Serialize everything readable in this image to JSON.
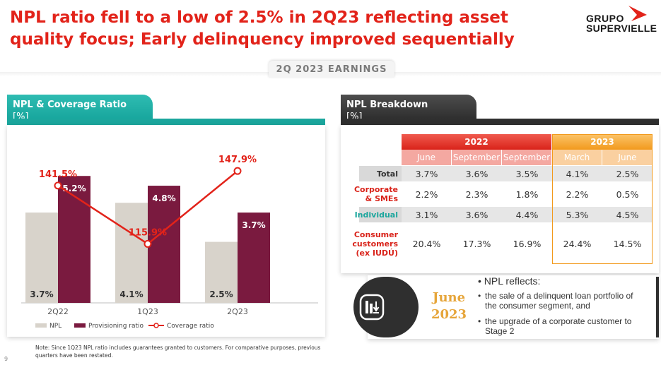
{
  "header": {
    "title": "NPL ratio fell to a low of 2.5% in 2Q23 reflecting asset quality focus; Early delinquency improved sequentially",
    "logo_line1": "GRUPO",
    "logo_line2": "SUPERVIELLE",
    "section_tab": "2Q 2023 EARNINGS"
  },
  "left_panel": {
    "title": "NPL & Coverage Ratio",
    "unit": "[%]"
  },
  "right_panel": {
    "title": "NPL Breakdown",
    "unit": "[%]"
  },
  "colors": {
    "npl": "#d8d3cb",
    "provisioning": "#7a1a3f",
    "coverage": "#e2231a",
    "teal": "#1ba69d",
    "brand_red": "#e2231a"
  },
  "chart_data": {
    "type": "bar+line",
    "categories": [
      "2Q22",
      "1Q23",
      "2Q23"
    ],
    "series": [
      {
        "name": "NPL",
        "kind": "bar",
        "values": [
          3.7,
          4.1,
          2.5
        ],
        "labels": [
          "3.7%",
          "4.1%",
          "2.5%"
        ]
      },
      {
        "name": "Provisioning ratio",
        "kind": "bar",
        "values": [
          5.2,
          4.8,
          3.7
        ],
        "labels": [
          "5.2%",
          "4.8%",
          "3.7%"
        ]
      },
      {
        "name": "Coverage ratio",
        "kind": "line",
        "values": [
          141.5,
          115.9,
          147.9
        ],
        "labels": [
          "141.5%",
          "115.9%",
          "147.9%"
        ]
      }
    ],
    "legend": [
      "NPL",
      "Provisioning ratio",
      "Coverage ratio"
    ],
    "legend_position": "bottom-left",
    "bar_axis_range": [
      0,
      7
    ],
    "line_axis_range": [
      90,
      165
    ]
  },
  "note": "Note: Since 1Q23 NPL ratio includes guarantees granted to customers. For comparative purposes, previous quarters have been restated.",
  "page_number": "9",
  "npl_table": {
    "years": [
      "2022",
      "2023"
    ],
    "months": [
      "June",
      "September",
      "September",
      "March",
      "June"
    ],
    "rows": [
      {
        "label": "Total",
        "values": [
          "3.7%",
          "3.6%",
          "3.5%",
          "4.1%",
          "2.5%"
        ]
      },
      {
        "label": "Corporate & SMEs",
        "values": [
          "2.2%",
          "2.3%",
          "1.8%",
          "2.2%",
          "0.5%"
        ]
      },
      {
        "label": "Individual",
        "values": [
          "3.1%",
          "3.6%",
          "4.4%",
          "5.3%",
          "4.5%"
        ]
      },
      {
        "label": "Consumer customers (ex IUDÚ)",
        "values": [
          "20.4%",
          "17.3%",
          "16.9%",
          "24.4%",
          "14.5%"
        ]
      }
    ]
  },
  "june_box": {
    "month": "June",
    "year": "2023",
    "icon": "chart-down-icon",
    "heading": "NPL reflects:",
    "bullets": [
      "the sale of a delinquent loan portfolio of the consumer segment, and",
      "the upgrade of a corporate customer to Stage 2"
    ]
  }
}
